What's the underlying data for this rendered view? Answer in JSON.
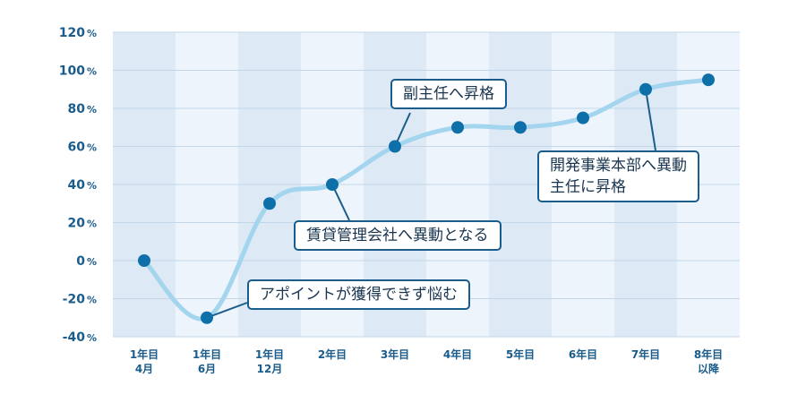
{
  "chart_data": {
    "type": "line",
    "categories": [
      [
        "1年目",
        "4月"
      ],
      [
        "1年目",
        "6月"
      ],
      [
        "1年目",
        "12月"
      ],
      [
        "2年目"
      ],
      [
        "3年目"
      ],
      [
        "4年目"
      ],
      [
        "5年目"
      ],
      [
        "6年目"
      ],
      [
        "7年目"
      ],
      [
        "8年目",
        "以降"
      ]
    ],
    "values": [
      0,
      -30,
      30,
      40,
      60,
      70,
      70,
      75,
      90,
      95
    ],
    "ylim": [
      -40,
      120
    ],
    "yticks": [
      "120",
      "100",
      "80",
      "60",
      "40",
      "20",
      "0",
      "-20",
      "-40"
    ],
    "ytick_unit": "%",
    "grid": true,
    "annotations": [
      {
        "text": [
          "副主任へ昇格"
        ],
        "point_index": 4
      },
      {
        "text": [
          "開発事業本部へ異動",
          "主任に昇格"
        ],
        "point_index": 8
      },
      {
        "text": [
          "賃貸管理会社へ異動となる"
        ],
        "point_index": 3
      },
      {
        "text": [
          "アポイントが獲得できず悩む"
        ],
        "point_index": 1
      }
    ],
    "colors": {
      "line": "#a4d5ee",
      "marker": "#0f6fa8",
      "band_dark": "#dde9f5",
      "band_light": "#edf4fb",
      "text": "#1a5c8c"
    }
  }
}
